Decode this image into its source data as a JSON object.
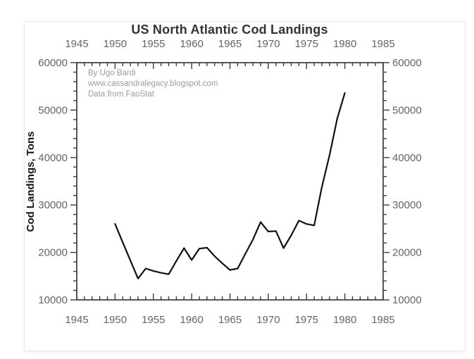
{
  "chart_data": {
    "type": "line",
    "title": "US North Atlantic Cod Landings",
    "xlabel": "",
    "ylabel": "Cod Landings, Tons",
    "x": [
      1950,
      1951,
      1952,
      1953,
      1954,
      1955,
      1956,
      1957,
      1958,
      1959,
      1960,
      1961,
      1962,
      1963,
      1964,
      1965,
      1966,
      1967,
      1968,
      1969,
      1970,
      1971,
      1972,
      1973,
      1974,
      1975,
      1976,
      1977,
      1978,
      1979,
      1980
    ],
    "values": [
      26000,
      22100,
      18300,
      14500,
      16600,
      16100,
      15700,
      15400,
      18200,
      20900,
      18400,
      20800,
      21000,
      19200,
      17700,
      16300,
      16600,
      19700,
      22700,
      26400,
      24400,
      24500,
      20900,
      23600,
      26700,
      26000,
      25700,
      33800,
      40500,
      48200,
      53600
    ],
    "xlim": [
      1945,
      1985
    ],
    "ylim": [
      10000,
      60000
    ],
    "x_major_ticks": [
      1945,
      1950,
      1955,
      1960,
      1965,
      1970,
      1975,
      1980,
      1985
    ],
    "x_minor_tick_step": 1,
    "y_major_ticks": [
      10000,
      20000,
      30000,
      40000,
      50000,
      60000
    ],
    "y_minor_tick_step": 2000,
    "grid": false,
    "legend": "none",
    "line_color": "#111111",
    "axis_color": "#3c3c3c",
    "tick_label_color": "#646464",
    "annotation_color": "#9b9b9b",
    "annotation_lines": [
      "By Ugo Bardi",
      "www.cassandralegacy.blogspot.com",
      "Data from FaoStat"
    ]
  }
}
